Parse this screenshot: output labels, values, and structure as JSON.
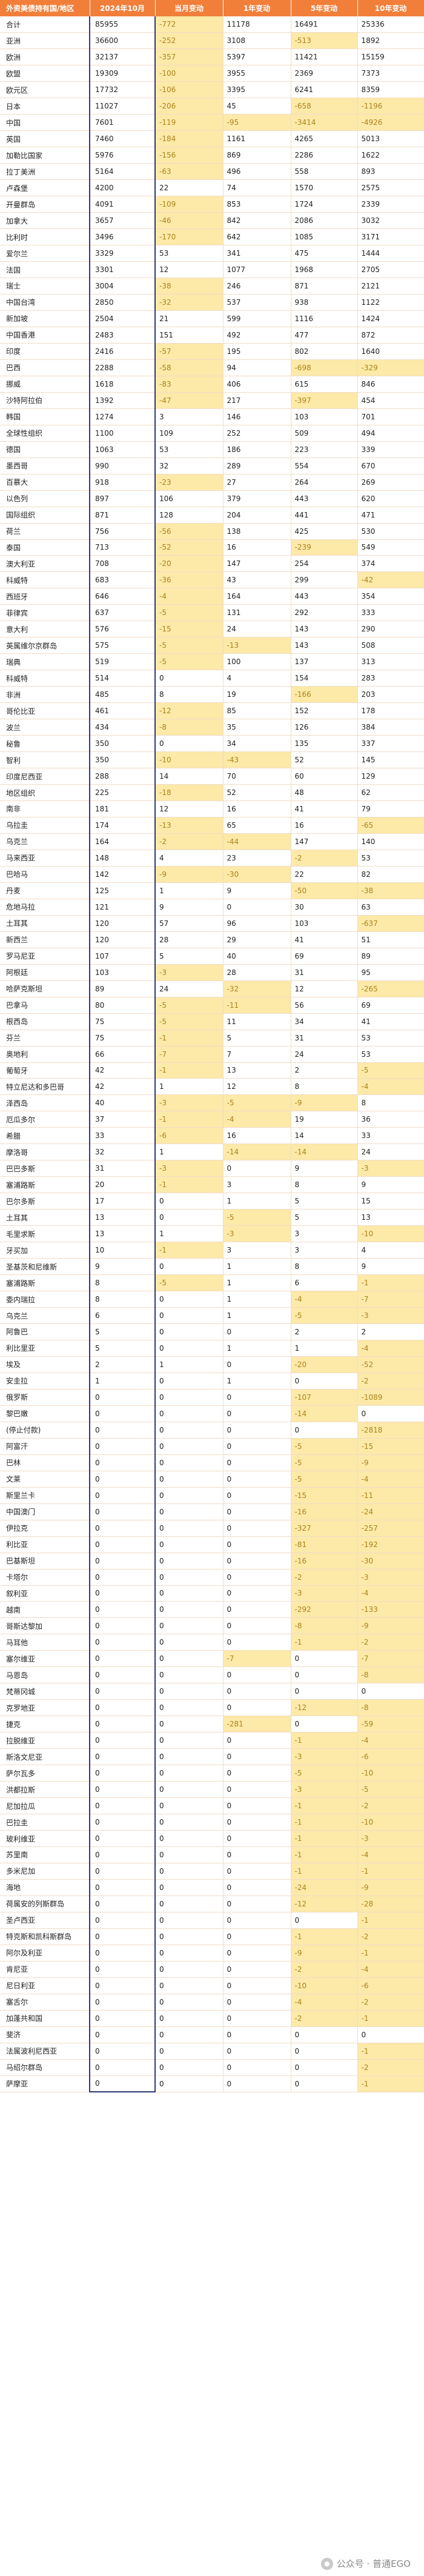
{
  "headers": [
    "外资美债持有国/地区",
    "2024年10月",
    "当月变动",
    "1年变动",
    "5年变动",
    "10年变动"
  ],
  "rows": [
    [
      "合计",
      "85955",
      "-772",
      "11178",
      "16491",
      "25336"
    ],
    [
      "亚洲",
      "36600",
      "-252",
      "3108",
      "-513",
      "1892"
    ],
    [
      "欧洲",
      "32137",
      "-357",
      "5397",
      "11421",
      "15159"
    ],
    [
      "欧盟",
      "19309",
      "-100",
      "3955",
      "2369",
      "7373"
    ],
    [
      "欧元区",
      "17732",
      "-106",
      "3395",
      "6241",
      "8359"
    ],
    [
      "日本",
      "11027",
      "-206",
      "45",
      "-658",
      "-1196"
    ],
    [
      "中国",
      "7601",
      "-119",
      "-95",
      "-3414",
      "-4926"
    ],
    [
      "英国",
      "7460",
      "-184",
      "1161",
      "4265",
      "5013"
    ],
    [
      "加勒比国家",
      "5976",
      "-156",
      "869",
      "2286",
      "1622"
    ],
    [
      "拉丁美洲",
      "5164",
      "-63",
      "496",
      "558",
      "893"
    ],
    [
      "卢森堡",
      "4200",
      "22",
      "74",
      "1570",
      "2575"
    ],
    [
      "开曼群岛",
      "4091",
      "-109",
      "853",
      "1724",
      "2339"
    ],
    [
      "加拿大",
      "3657",
      "-46",
      "842",
      "2086",
      "3032"
    ],
    [
      "比利时",
      "3496",
      "-170",
      "642",
      "1085",
      "3171"
    ],
    [
      "爱尔兰",
      "3329",
      "53",
      "341",
      "475",
      "1444"
    ],
    [
      "法国",
      "3301",
      "12",
      "1077",
      "1968",
      "2705"
    ],
    [
      "瑞士",
      "3004",
      "-38",
      "246",
      "871",
      "2121"
    ],
    [
      "中国台湾",
      "2850",
      "-32",
      "537",
      "938",
      "1122"
    ],
    [
      "新加坡",
      "2504",
      "21",
      "599",
      "1116",
      "1424"
    ],
    [
      "中国香港",
      "2483",
      "151",
      "492",
      "477",
      "872"
    ],
    [
      "印度",
      "2416",
      "-57",
      "195",
      "802",
      "1640"
    ],
    [
      "巴西",
      "2288",
      "-58",
      "94",
      "-698",
      "-329"
    ],
    [
      "挪威",
      "1618",
      "-83",
      "406",
      "615",
      "846"
    ],
    [
      "沙特阿拉伯",
      "1392",
      "-47",
      "217",
      "-397",
      "454"
    ],
    [
      "韩国",
      "1274",
      "3",
      "146",
      "103",
      "701"
    ],
    [
      "全球性组织",
      "1100",
      "109",
      "252",
      "509",
      "494"
    ],
    [
      "德国",
      "1063",
      "53",
      "186",
      "223",
      "339"
    ],
    [
      "墨西哥",
      "990",
      "32",
      "289",
      "554",
      "670"
    ],
    [
      "百慕大",
      "918",
      "-23",
      "27",
      "264",
      "269"
    ],
    [
      "以色列",
      "897",
      "106",
      "379",
      "443",
      "620"
    ],
    [
      "国际组织",
      "871",
      "128",
      "204",
      "441",
      "471"
    ],
    [
      "荷兰",
      "756",
      "-56",
      "138",
      "425",
      "530"
    ],
    [
      "泰国",
      "713",
      "-52",
      "16",
      "-239",
      "549"
    ],
    [
      "澳大利亚",
      "708",
      "-20",
      "147",
      "254",
      "374"
    ],
    [
      "科威特",
      "683",
      "-36",
      "43",
      "299",
      "-42"
    ],
    [
      "西班牙",
      "646",
      "-4",
      "164",
      "443",
      "354"
    ],
    [
      "菲律宾",
      "637",
      "-5",
      "131",
      "292",
      "333"
    ],
    [
      "意大利",
      "576",
      "-15",
      "24",
      "143",
      "290"
    ],
    [
      "英属维尔京群岛",
      "575",
      "-5",
      "-13",
      "143",
      "508"
    ],
    [
      "瑞典",
      "519",
      "-5",
      "100",
      "137",
      "313"
    ],
    [
      "科威特",
      "514",
      "0",
      "4",
      "154",
      "283"
    ],
    [
      "非洲",
      "485",
      "8",
      "19",
      "-166",
      "203"
    ],
    [
      "哥伦比亚",
      "461",
      "-12",
      "85",
      "152",
      "178"
    ],
    [
      "波兰",
      "434",
      "-8",
      "35",
      "126",
      "384"
    ],
    [
      "秘鲁",
      "350",
      "0",
      "34",
      "135",
      "337"
    ],
    [
      "智利",
      "350",
      "-10",
      "-43",
      "52",
      "145"
    ],
    [
      "印度尼西亚",
      "288",
      "14",
      "70",
      "60",
      "129"
    ],
    [
      "地区组织",
      "225",
      "-18",
      "52",
      "48",
      "62"
    ],
    [
      "南非",
      "181",
      "12",
      "16",
      "41",
      "79"
    ],
    [
      "乌拉圭",
      "174",
      "-13",
      "65",
      "16",
      "-65"
    ],
    [
      "乌克兰",
      "164",
      "-2",
      "-44",
      "147",
      "140"
    ],
    [
      "马来西亚",
      "148",
      "4",
      "23",
      "-2",
      "53"
    ],
    [
      "巴哈马",
      "142",
      "-9",
      "-30",
      "22",
      "82"
    ],
    [
      "丹麦",
      "125",
      "1",
      "9",
      "-50",
      "-38"
    ],
    [
      "危地马拉",
      "121",
      "9",
      "0",
      "30",
      "63"
    ],
    [
      "土耳其",
      "120",
      "57",
      "96",
      "103",
      "-637"
    ],
    [
      "新西兰",
      "120",
      "28",
      "29",
      "41",
      "51"
    ],
    [
      "罗马尼亚",
      "107",
      "5",
      "40",
      "69",
      "89"
    ],
    [
      "阿根廷",
      "103",
      "-3",
      "28",
      "31",
      "95"
    ],
    [
      "哈萨克斯坦",
      "89",
      "24",
      "-32",
      "12",
      "-265"
    ],
    [
      "巴拿马",
      "80",
      "-5",
      "-11",
      "56",
      "69"
    ],
    [
      "根西岛",
      "75",
      "-5",
      "11",
      "34",
      "41"
    ],
    [
      "芬兰",
      "75",
      "-1",
      "5",
      "31",
      "53"
    ],
    [
      "奥地利",
      "66",
      "-7",
      "7",
      "24",
      "53"
    ],
    [
      "葡萄牙",
      "42",
      "-1",
      "13",
      "2",
      "-5"
    ],
    [
      "特立尼达和多巴哥",
      "42",
      "1",
      "12",
      "8",
      "-4"
    ],
    [
      "泽西岛",
      "40",
      "-3",
      "-5",
      "-9",
      "8"
    ],
    [
      "厄瓜多尔",
      "37",
      "-1",
      "-4",
      "19",
      "36"
    ],
    [
      "希腊",
      "33",
      "-6",
      "16",
      "14",
      "33"
    ],
    [
      "摩洛哥",
      "32",
      "1",
      "-14",
      "-14",
      "24"
    ],
    [
      "巴巴多斯",
      "31",
      "-3",
      "0",
      "9",
      "-3"
    ],
    [
      "塞浦路斯",
      "20",
      "-1",
      "3",
      "8",
      "9"
    ],
    [
      "巴尔多斯",
      "17",
      "0",
      "1",
      "5",
      "15"
    ],
    [
      "土耳其",
      "13",
      "0",
      "-5",
      "5",
      "13"
    ],
    [
      "毛里求斯",
      "13",
      "1",
      "-3",
      "3",
      "-10"
    ],
    [
      "牙买加",
      "10",
      "-1",
      "3",
      "3",
      "4"
    ],
    [
      "圣基茨和尼维斯",
      "9",
      "0",
      "1",
      "8",
      "9"
    ],
    [
      "塞浦路斯",
      "8",
      "-5",
      "1",
      "6",
      "-1"
    ],
    [
      "委内瑞拉",
      "8",
      "0",
      "1",
      "-4",
      "-7"
    ],
    [
      "乌克兰",
      "6",
      "0",
      "1",
      "-5",
      "-3"
    ],
    [
      "阿鲁巴",
      "5",
      "0",
      "0",
      "2",
      "2"
    ],
    [
      "利比里亚",
      "5",
      "0",
      "1",
      "1",
      "-4"
    ],
    [
      "埃及",
      "2",
      "1",
      "0",
      "-20",
      "-52"
    ],
    [
      "安圭拉",
      "1",
      "0",
      "1",
      "0",
      "-2"
    ],
    [
      "俄罗斯",
      "0",
      "0",
      "0",
      "-107",
      "-1089"
    ],
    [
      "黎巴嫩",
      "0",
      "0",
      "0",
      "-14",
      "0"
    ],
    [
      "(停止付款)",
      "0",
      "0",
      "0",
      "0",
      "-2818"
    ],
    [
      "阿富汗",
      "0",
      "0",
      "0",
      "-5",
      "-15"
    ],
    [
      "巴林",
      "0",
      "0",
      "0",
      "-5",
      "-9"
    ],
    [
      "文莱",
      "0",
      "0",
      "0",
      "-5",
      "-4"
    ],
    [
      "斯里兰卡",
      "0",
      "0",
      "0",
      "-15",
      "-11"
    ],
    [
      "中国澳门",
      "0",
      "0",
      "0",
      "-16",
      "-24"
    ],
    [
      "伊拉克",
      "0",
      "0",
      "0",
      "-327",
      "-257"
    ],
    [
      "利比亚",
      "0",
      "0",
      "0",
      "-81",
      "-192"
    ],
    [
      "巴基斯坦",
      "0",
      "0",
      "0",
      "-16",
      "-30"
    ],
    [
      "卡塔尔",
      "0",
      "0",
      "0",
      "-2",
      "-3"
    ],
    [
      "叙利亚",
      "0",
      "0",
      "0",
      "-3",
      "-4"
    ],
    [
      "越南",
      "0",
      "0",
      "0",
      "-292",
      "-133"
    ],
    [
      "哥斯达黎加",
      "0",
      "0",
      "0",
      "-8",
      "-9"
    ],
    [
      "马耳他",
      "0",
      "0",
      "0",
      "-1",
      "-2"
    ],
    [
      "塞尔维亚",
      "0",
      "0",
      "-7",
      "0",
      "-7"
    ],
    [
      "马恩岛",
      "0",
      "0",
      "0",
      "0",
      "-8"
    ],
    [
      "梵蒂冈城",
      "0",
      "0",
      "0",
      "0",
      "0"
    ],
    [
      "克罗地亚",
      "0",
      "0",
      "0",
      "-12",
      "-8"
    ],
    [
      "捷克",
      "0",
      "0",
      "-281",
      "0",
      "-59"
    ],
    [
      "拉脱维亚",
      "0",
      "0",
      "0",
      "-1",
      "-4"
    ],
    [
      "斯洛文尼亚",
      "0",
      "0",
      "0",
      "-3",
      "-6"
    ],
    [
      "萨尔瓦多",
      "0",
      "0",
      "0",
      "-5",
      "-10"
    ],
    [
      "洪都拉斯",
      "0",
      "0",
      "0",
      "-3",
      "-5"
    ],
    [
      "尼加拉瓜",
      "0",
      "0",
      "0",
      "-1",
      "-2"
    ],
    [
      "巴拉圭",
      "0",
      "0",
      "0",
      "-1",
      "-10"
    ],
    [
      "玻利维亚",
      "0",
      "0",
      "0",
      "-1",
      "-3"
    ],
    [
      "苏里南",
      "0",
      "0",
      "0",
      "-1",
      "-4"
    ],
    [
      "多米尼加",
      "0",
      "0",
      "0",
      "-1",
      "-1"
    ],
    [
      "海地",
      "0",
      "0",
      "0",
      "-24",
      "-9"
    ],
    [
      "荷属安的列斯群岛",
      "0",
      "0",
      "0",
      "-12",
      "-28"
    ],
    [
      "圣卢西亚",
      "0",
      "0",
      "0",
      "0",
      "-1"
    ],
    [
      "特克斯和凯科斯群岛",
      "0",
      "0",
      "0",
      "-1",
      "-2"
    ],
    [
      "阿尔及利亚",
      "0",
      "0",
      "0",
      "-9",
      "-1"
    ],
    [
      "肯尼亚",
      "0",
      "0",
      "0",
      "-2",
      "-4"
    ],
    [
      "尼日利亚",
      "0",
      "0",
      "0",
      "-10",
      "-6"
    ],
    [
      "塞舌尔",
      "0",
      "0",
      "0",
      "-4",
      "-2"
    ],
    [
      "加蓬共和国",
      "0",
      "0",
      "0",
      "-2",
      "-1"
    ],
    [
      "斐济",
      "0",
      "0",
      "0",
      "0",
      "0"
    ],
    [
      "法属波利尼西亚",
      "0",
      "0",
      "0",
      "0",
      "-1"
    ],
    [
      "马绍尔群岛",
      "0",
      "0",
      "0",
      "0",
      "-2"
    ],
    [
      "萨摩亚",
      "0",
      "0",
      "0",
      "0",
      "-1"
    ]
  ],
  "watermark": "公众号 · 普通EGO",
  "colors": {
    "header": "#f17f3a",
    "negative_bg": "#fde9a8",
    "negative_text": "#a9841d",
    "total_border": "#2d3a73"
  }
}
